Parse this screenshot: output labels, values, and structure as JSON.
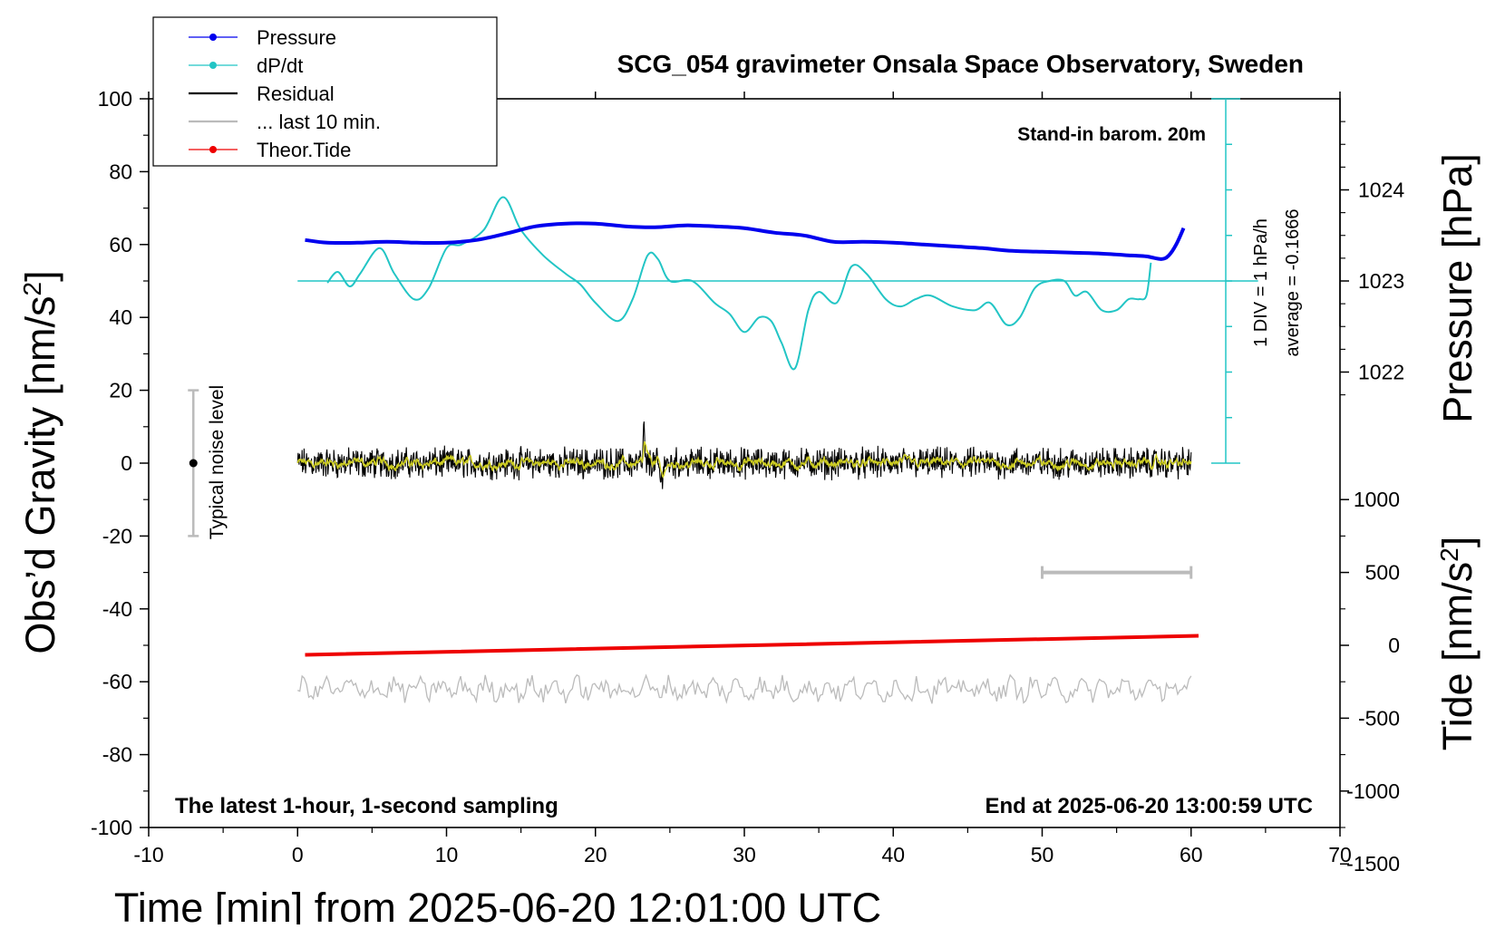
{
  "chart_data": {
    "type": "line",
    "title": "SCG_054 gravimeter Onsala Space Observatory, Sweden",
    "xlabel": "Time [min] from 2025-06-20 12:01:00 UTC",
    "ylabel_left": "Obs’d Gravity [nm/s",
    "ylabel_left_sup": "2",
    "ylabel_left_suffix": "]",
    "ylabel_pressure": "Pressure [hPa]",
    "ylabel_tide": "Tide [nm/s",
    "ylabel_tide_sup": "2",
    "ylabel_tide_suffix": "]",
    "xlim": [
      -10,
      70
    ],
    "ylim": [
      -100,
      100
    ],
    "xticks": [
      -10,
      0,
      10,
      20,
      30,
      40,
      50,
      60,
      70
    ],
    "yticks": [
      -100,
      -80,
      -60,
      -40,
      -20,
      0,
      20,
      40,
      60,
      80,
      100
    ],
    "pressure_axis": {
      "ticks": [
        1022,
        1023,
        1024
      ],
      "gravity_at_1023": 50,
      "gravity_per_hPa": 25
    },
    "tide_axis": {
      "ticks": [
        -1500,
        -1000,
        -500,
        0,
        500,
        1000
      ],
      "gravity_at_0": -50,
      "gravity_per_nm_s2": 0.04
    },
    "legend": {
      "placement": "top-left",
      "entries": [
        {
          "label": "Pressure",
          "color": "#0000ee",
          "marker": "dot"
        },
        {
          "label": "dP/dt",
          "color": "#22c5c5",
          "marker": "dot"
        },
        {
          "label": "Residual",
          "color": "#000000",
          "marker": "none"
        },
        {
          "label": "... last 10 min.",
          "color": "#bbbbbb",
          "marker": "none"
        },
        {
          "label": "Theor.Tide",
          "color": "#ee0000",
          "marker": "dot"
        }
      ]
    },
    "annotations": {
      "barometer": "Stand-in barom. 20m",
      "footer_left": "The latest 1-hour, 1-second sampling",
      "footer_right": "End at 2025-06-20 13:00:59 UTC",
      "noise": "Typical noise level",
      "div_label": "1 DIV = 1 hPa/h",
      "average_label": "average = -0.1666"
    },
    "noise_bar": {
      "x": -7,
      "y": [
        -20,
        20
      ]
    },
    "ten_min_bar": {
      "x": [
        50,
        60
      ],
      "tide": 500
    },
    "series": [
      {
        "name": "Pressure",
        "axis": "pressure",
        "color": "#0000ee",
        "x": [
          0.5,
          2,
          4,
          6,
          8,
          10,
          12,
          14,
          16,
          18,
          20,
          22,
          24,
          26,
          28,
          30,
          32,
          34,
          36,
          38,
          40,
          42,
          44,
          46,
          48,
          50,
          52,
          54,
          56,
          57,
          58,
          58.5,
          59,
          59.5
        ],
        "y": [
          1023.45,
          1023.42,
          1023.42,
          1023.43,
          1023.42,
          1023.42,
          1023.45,
          1023.52,
          1023.6,
          1023.63,
          1023.63,
          1023.6,
          1023.59,
          1023.61,
          1023.6,
          1023.58,
          1023.53,
          1023.5,
          1023.43,
          1023.43,
          1023.42,
          1023.4,
          1023.38,
          1023.36,
          1023.33,
          1023.32,
          1023.31,
          1023.3,
          1023.28,
          1023.27,
          1023.24,
          1023.28,
          1023.4,
          1023.58
        ]
      },
      {
        "name": "dP/dt",
        "axis": "gravity",
        "color": "#22c5c5",
        "x": [
          2,
          2.7,
          3.5,
          4.2,
          5.5,
          6.5,
          7.8,
          8.8,
          10,
          11,
          12.5,
          13.8,
          15,
          16.5,
          18,
          19,
          20,
          21.5,
          22.5,
          23.5,
          24.2,
          25,
          26.5,
          28,
          29,
          30,
          31,
          31.8,
          32.5,
          33.4,
          34.3,
          35,
          36.2,
          37.2,
          38.2,
          39.5,
          40.5,
          41.5,
          42.5,
          44,
          45.5,
          46.5,
          47.6,
          48.5,
          49.5,
          50.5,
          51.5,
          52.2,
          53,
          54,
          55,
          55.8,
          56.5,
          57,
          57.3
        ],
        "y": [
          49.5,
          52.5,
          48.5,
          52,
          59,
          52,
          45,
          48,
          59,
          60,
          64,
          73,
          64,
          57,
          52,
          49,
          44,
          39,
          45,
          57,
          56,
          50,
          50,
          44,
          41,
          36,
          40,
          39,
          33,
          26,
          42,
          47,
          44,
          54,
          52,
          45,
          43,
          45,
          46,
          43,
          42,
          44,
          38,
          40,
          48,
          50,
          50,
          46,
          47,
          42,
          42,
          45,
          45,
          46,
          55
        ]
      },
      {
        "name": "Theor.Tide",
        "axis": "tide",
        "color": "#ee0000",
        "x": [
          0.5,
          60.5
        ],
        "y": [
          -65,
          65
        ]
      }
    ]
  }
}
